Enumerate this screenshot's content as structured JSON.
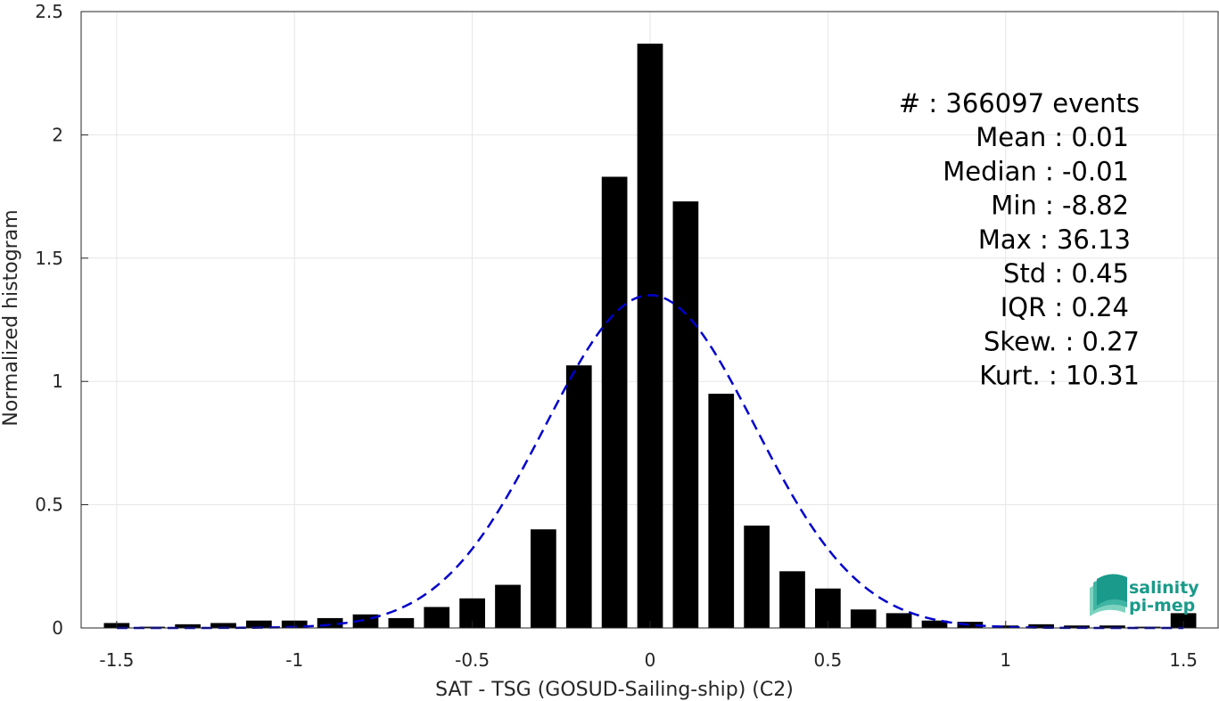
{
  "chart_data": {
    "type": "bar",
    "xlabel": "SAT - TSG (GOSUD-Sailing-ship) (C2)",
    "ylabel": "Normalized histogram",
    "xlim": [
      -1.6,
      1.6
    ],
    "ylim": [
      0,
      2.5
    ],
    "xticks": [
      -1.5,
      -1,
      -0.5,
      0,
      0.5,
      1,
      1.5
    ],
    "xtick_labels": [
      "-1.5",
      "-1",
      "-0.5",
      "0",
      "0.5",
      "1",
      "1.5"
    ],
    "yticks": [
      0,
      0.5,
      1,
      1.5,
      2,
      2.5
    ],
    "ytick_labels": [
      "0",
      "0.5",
      "1",
      "1.5",
      "2",
      "2.5"
    ],
    "grid": true,
    "bin_width": 0.1,
    "bar_color": "#000000",
    "bins": [
      {
        "x": -1.5,
        "y": 0.02
      },
      {
        "x": -1.4,
        "y": 0.005
      },
      {
        "x": -1.3,
        "y": 0.015
      },
      {
        "x": -1.2,
        "y": 0.02
      },
      {
        "x": -1.1,
        "y": 0.03
      },
      {
        "x": -1.0,
        "y": 0.03
      },
      {
        "x": -0.9,
        "y": 0.04
      },
      {
        "x": -0.8,
        "y": 0.055
      },
      {
        "x": -0.7,
        "y": 0.04
      },
      {
        "x": -0.6,
        "y": 0.085
      },
      {
        "x": -0.5,
        "y": 0.12
      },
      {
        "x": -0.4,
        "y": 0.175
      },
      {
        "x": -0.3,
        "y": 0.4
      },
      {
        "x": -0.2,
        "y": 1.065
      },
      {
        "x": -0.1,
        "y": 1.83
      },
      {
        "x": 0.0,
        "y": 2.37
      },
      {
        "x": 0.1,
        "y": 1.73
      },
      {
        "x": 0.2,
        "y": 0.95
      },
      {
        "x": 0.3,
        "y": 0.415
      },
      {
        "x": 0.4,
        "y": 0.23
      },
      {
        "x": 0.5,
        "y": 0.16
      },
      {
        "x": 0.6,
        "y": 0.075
      },
      {
        "x": 0.7,
        "y": 0.06
      },
      {
        "x": 0.8,
        "y": 0.03
      },
      {
        "x": 0.9,
        "y": 0.025
      },
      {
        "x": 1.0,
        "y": 0.01
      },
      {
        "x": 1.1,
        "y": 0.015
      },
      {
        "x": 1.2,
        "y": 0.01
      },
      {
        "x": 1.3,
        "y": 0.01
      },
      {
        "x": 1.4,
        "y": 0.005
      },
      {
        "x": 1.5,
        "y": 0.06
      }
    ],
    "fit_curve": {
      "type": "gaussian",
      "mean": 0.0,
      "sigma": 0.295,
      "peak": 1.35,
      "x_range": [
        -1.5,
        1.5
      ],
      "color": "#0000cc",
      "style": "dashed"
    },
    "annotations": [
      "#  : 366097 events",
      "Mean : 0.01",
      "Median : -0.01",
      "Min : -8.82",
      "Max : 36.13",
      "Std : 0.45",
      "IQR : 0.24",
      "Skew. : 0.27",
      "Kurt. : 10.31"
    ]
  },
  "logo": {
    "line1": "salinity",
    "line2": "pi-mep",
    "color": "#1a9a8a"
  }
}
